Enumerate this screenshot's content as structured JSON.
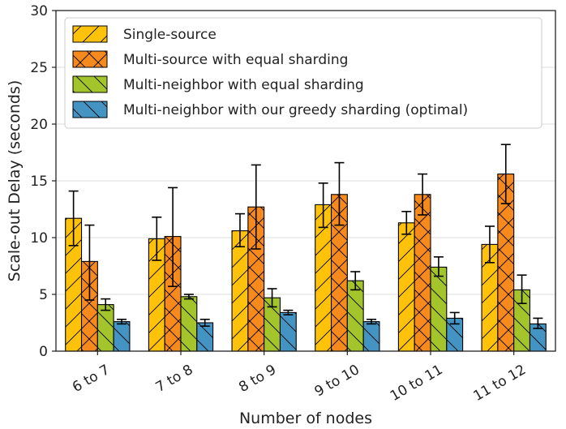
{
  "chart_data": {
    "type": "bar",
    "title": "",
    "xlabel": "Number of nodes",
    "ylabel": "Scale-out Delay (seconds)",
    "ylim": [
      0,
      30
    ],
    "yticks": [
      0,
      5,
      10,
      15,
      20,
      25,
      30
    ],
    "grid": true,
    "legend_position": "top-left",
    "categories": [
      "6 to 7",
      "7 to 8",
      "8 to 9",
      "9 to 10",
      "10 to 11",
      "11 to 12"
    ],
    "series": [
      {
        "name": "Single-source",
        "color": "#ffc20a",
        "hatch": "forward-slash",
        "values": [
          11.7,
          9.9,
          10.6,
          12.9,
          11.3,
          9.4
        ],
        "error_low": [
          9.3,
          8.0,
          9.2,
          10.9,
          10.3,
          7.8
        ],
        "error_high": [
          14.1,
          11.8,
          12.1,
          14.8,
          12.3,
          11.0
        ]
      },
      {
        "name": "Multi-source with equal sharding",
        "color": "#f78a1d",
        "hatch": "cross",
        "values": [
          7.9,
          10.1,
          12.7,
          13.8,
          13.8,
          15.6
        ],
        "error_low": [
          4.5,
          5.7,
          9.0,
          11.1,
          12.0,
          13.0
        ],
        "error_high": [
          11.1,
          14.4,
          16.4,
          16.6,
          15.6,
          18.2
        ]
      },
      {
        "name": "Multi-neighbor with equal sharding",
        "color": "#a3c42b",
        "hatch": "back-slash",
        "values": [
          4.1,
          4.8,
          4.7,
          6.2,
          7.4,
          5.4
        ],
        "error_low": [
          3.6,
          4.6,
          3.9,
          5.4,
          6.6,
          4.2
        ],
        "error_high": [
          4.6,
          5.0,
          5.5,
          7.0,
          8.3,
          6.7
        ]
      },
      {
        "name": "Multi-neighbor with our greedy sharding (optimal)",
        "color": "#4393c3",
        "hatch": "back-slash",
        "values": [
          2.6,
          2.5,
          3.4,
          2.6,
          2.9,
          2.4
        ],
        "error_low": [
          2.4,
          2.2,
          3.2,
          2.4,
          2.4,
          2.0
        ],
        "error_high": [
          2.8,
          2.8,
          3.6,
          2.8,
          3.4,
          2.9
        ]
      }
    ]
  }
}
